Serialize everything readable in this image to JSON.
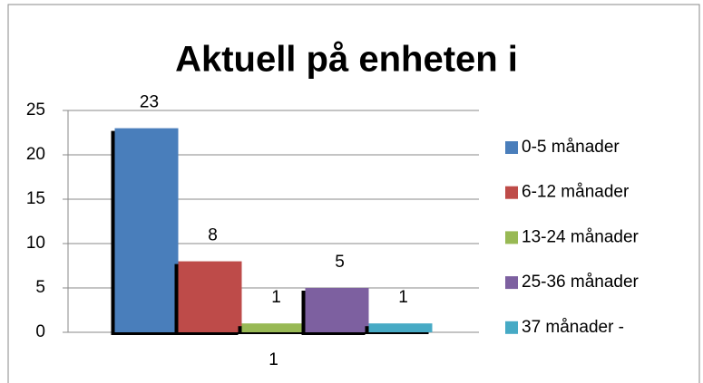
{
  "chart_data": {
    "type": "bar",
    "title": "Aktuell på enheten i",
    "categories": [
      "1"
    ],
    "series": [
      {
        "name": "0-5 månader",
        "color": "#4a7ebb",
        "values": [
          23
        ]
      },
      {
        "name": "6-12 månader",
        "color": "#be4b48",
        "values": [
          8
        ]
      },
      {
        "name": "13-24 månader",
        "color": "#98b954",
        "values": [
          1
        ]
      },
      {
        "name": "25-36 månader",
        "color": "#7d60a0",
        "values": [
          5
        ]
      },
      {
        "name": "37 månader -",
        "color": "#46aac5",
        "values": [
          1
        ]
      }
    ],
    "ylim": [
      0,
      25
    ],
    "yticks": [
      0,
      5,
      10,
      15,
      20,
      25
    ],
    "grid": true,
    "legend": "right"
  }
}
